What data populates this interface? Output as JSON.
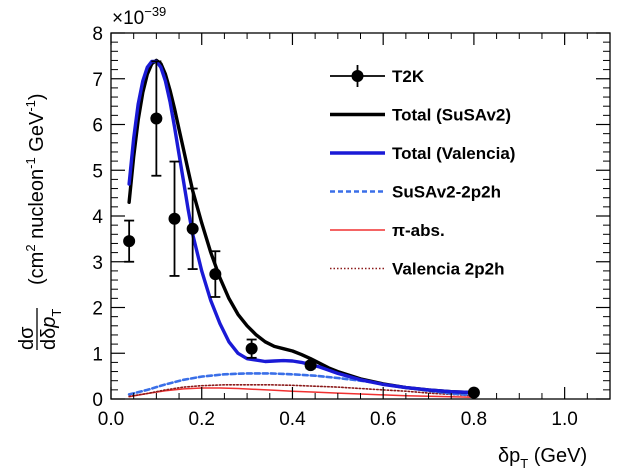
{
  "chart_data": {
    "type": "line",
    "xlabel": "δp_T (GeV)",
    "ylabel": "dσ/dδp_T (cm² nucleon⁻¹ GeV⁻¹)",
    "y_multiplier": "×10^-39",
    "xlim": [
      0,
      1.1
    ],
    "ylim": [
      0,
      8
    ],
    "x_ticks": [
      0.0,
      0.2,
      0.4,
      0.6,
      0.8,
      1.0
    ],
    "x_tick_labels": [
      "0.0",
      "0.2",
      "0.4",
      "0.6",
      "0.8",
      "1.0"
    ],
    "y_ticks": [
      0,
      1,
      2,
      3,
      4,
      5,
      6,
      7,
      8
    ],
    "y_tick_labels": [
      "0",
      "1",
      "2",
      "3",
      "4",
      "5",
      "6",
      "7",
      "8"
    ],
    "grid": false,
    "legend_position": "top-right",
    "legend": [
      {
        "label": "T2K",
        "color": "#000000",
        "style": "marker"
      },
      {
        "label": "Total (SuSAv2)",
        "color": "#000000",
        "style": "solid-thick"
      },
      {
        "label": "Total (Valencia)",
        "color": "#1a1ad6",
        "style": "solid-thick"
      },
      {
        "label": "SuSAv2-2p2h",
        "color": "#3a6fe8",
        "style": "dashed"
      },
      {
        "label": "π-abs.",
        "color": "#f03030",
        "style": "solid-thin"
      },
      {
        "label": "Valencia 2p2h",
        "color": "#8b1a1a",
        "style": "dotted"
      }
    ],
    "data_points": {
      "name": "T2K",
      "x": [
        0.04,
        0.1,
        0.14,
        0.18,
        0.23,
        0.31,
        0.44,
        0.8
      ],
      "y": [
        3.45,
        6.13,
        3.94,
        3.72,
        2.73,
        1.1,
        0.74,
        0.14
      ],
      "yerr": [
        0.45,
        1.25,
        1.25,
        0.88,
        0.5,
        0.2,
        0.07,
        0.02
      ]
    },
    "series": [
      {
        "name": "Total (SuSAv2)",
        "color": "#000000",
        "x": [
          0.04,
          0.05,
          0.06,
          0.07,
          0.08,
          0.09,
          0.1,
          0.11,
          0.12,
          0.13,
          0.14,
          0.15,
          0.16,
          0.17,
          0.18,
          0.2,
          0.22,
          0.24,
          0.26,
          0.28,
          0.3,
          0.32,
          0.34,
          0.36,
          0.38,
          0.4,
          0.42,
          0.44,
          0.46,
          0.48,
          0.5,
          0.55,
          0.6,
          0.65,
          0.7,
          0.75,
          0.8
        ],
        "y": [
          4.3,
          5.3,
          6.1,
          6.7,
          7.1,
          7.33,
          7.4,
          7.33,
          7.1,
          6.75,
          6.35,
          5.9,
          5.45,
          5.0,
          4.55,
          3.85,
          3.2,
          2.65,
          2.2,
          1.85,
          1.6,
          1.4,
          1.25,
          1.15,
          1.1,
          1.05,
          0.97,
          0.88,
          0.78,
          0.68,
          0.6,
          0.44,
          0.33,
          0.25,
          0.2,
          0.16,
          0.14
        ]
      },
      {
        "name": "Total (Valencia)",
        "color": "#1a1ad6",
        "x": [
          0.04,
          0.05,
          0.06,
          0.07,
          0.08,
          0.09,
          0.1,
          0.11,
          0.12,
          0.13,
          0.14,
          0.15,
          0.16,
          0.17,
          0.18,
          0.2,
          0.22,
          0.24,
          0.26,
          0.28,
          0.3,
          0.32,
          0.34,
          0.36,
          0.38,
          0.4,
          0.42,
          0.44,
          0.46,
          0.48,
          0.5,
          0.55,
          0.6,
          0.65,
          0.7,
          0.75,
          0.8
        ],
        "y": [
          4.7,
          5.7,
          6.45,
          6.95,
          7.25,
          7.38,
          7.38,
          7.25,
          6.95,
          6.5,
          5.95,
          5.35,
          4.75,
          4.15,
          3.6,
          2.8,
          2.15,
          1.65,
          1.25,
          1.0,
          0.88,
          0.85,
          0.82,
          0.83,
          0.84,
          0.83,
          0.8,
          0.75,
          0.7,
          0.63,
          0.56,
          0.42,
          0.32,
          0.25,
          0.2,
          0.16,
          0.14
        ]
      },
      {
        "name": "SuSAv2-2p2h",
        "color": "#3a6fe8",
        "x": [
          0.04,
          0.08,
          0.12,
          0.16,
          0.2,
          0.25,
          0.3,
          0.35,
          0.4,
          0.45,
          0.5,
          0.55,
          0.6,
          0.65,
          0.7,
          0.75,
          0.8
        ],
        "y": [
          0.1,
          0.2,
          0.32,
          0.42,
          0.49,
          0.54,
          0.56,
          0.56,
          0.54,
          0.51,
          0.46,
          0.4,
          0.33,
          0.25,
          0.18,
          0.12,
          0.08
        ]
      },
      {
        "name": "π-abs.",
        "color": "#f03030",
        "x": [
          0.04,
          0.08,
          0.12,
          0.16,
          0.2,
          0.24,
          0.28,
          0.32,
          0.36,
          0.4,
          0.45,
          0.5,
          0.55,
          0.6,
          0.65,
          0.7,
          0.75,
          0.8
        ],
        "y": [
          0.05,
          0.12,
          0.18,
          0.22,
          0.24,
          0.24,
          0.23,
          0.21,
          0.19,
          0.17,
          0.15,
          0.13,
          0.11,
          0.09,
          0.07,
          0.06,
          0.05,
          0.04
        ]
      },
      {
        "name": "Valencia 2p2h",
        "color": "#8b1a1a",
        "x": [
          0.04,
          0.08,
          0.12,
          0.16,
          0.2,
          0.25,
          0.3,
          0.35,
          0.4,
          0.45,
          0.5,
          0.55,
          0.6,
          0.65,
          0.7,
          0.75,
          0.8
        ],
        "y": [
          0.06,
          0.12,
          0.2,
          0.26,
          0.29,
          0.31,
          0.31,
          0.31,
          0.3,
          0.28,
          0.26,
          0.23,
          0.2,
          0.17,
          0.13,
          0.1,
          0.07
        ]
      }
    ]
  }
}
